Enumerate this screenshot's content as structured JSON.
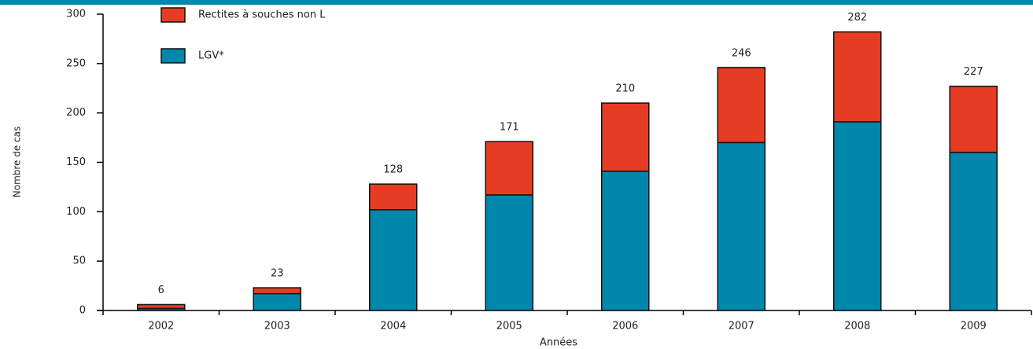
{
  "chart_data": {
    "type": "stacked_bar",
    "categories": [
      "2002",
      "2003",
      "2004",
      "2005",
      "2006",
      "2007",
      "2008",
      "2009"
    ],
    "series": [
      {
        "name": "LGV*",
        "color": "#0087ab",
        "values": [
          2,
          17,
          102,
          117,
          141,
          170,
          191,
          160
        ]
      },
      {
        "name": "Rectites à souches non L",
        "color": "#e63c23",
        "values": [
          4,
          6,
          26,
          54,
          69,
          76,
          91,
          67
        ]
      }
    ],
    "totals": [
      6,
      23,
      128,
      171,
      210,
      246,
      282,
      227
    ],
    "ylim": [
      0,
      300
    ],
    "yticks": [
      0,
      50,
      100,
      150,
      200,
      250,
      300
    ],
    "ylabel": "Nombre de cas",
    "xlabel": "Années"
  }
}
